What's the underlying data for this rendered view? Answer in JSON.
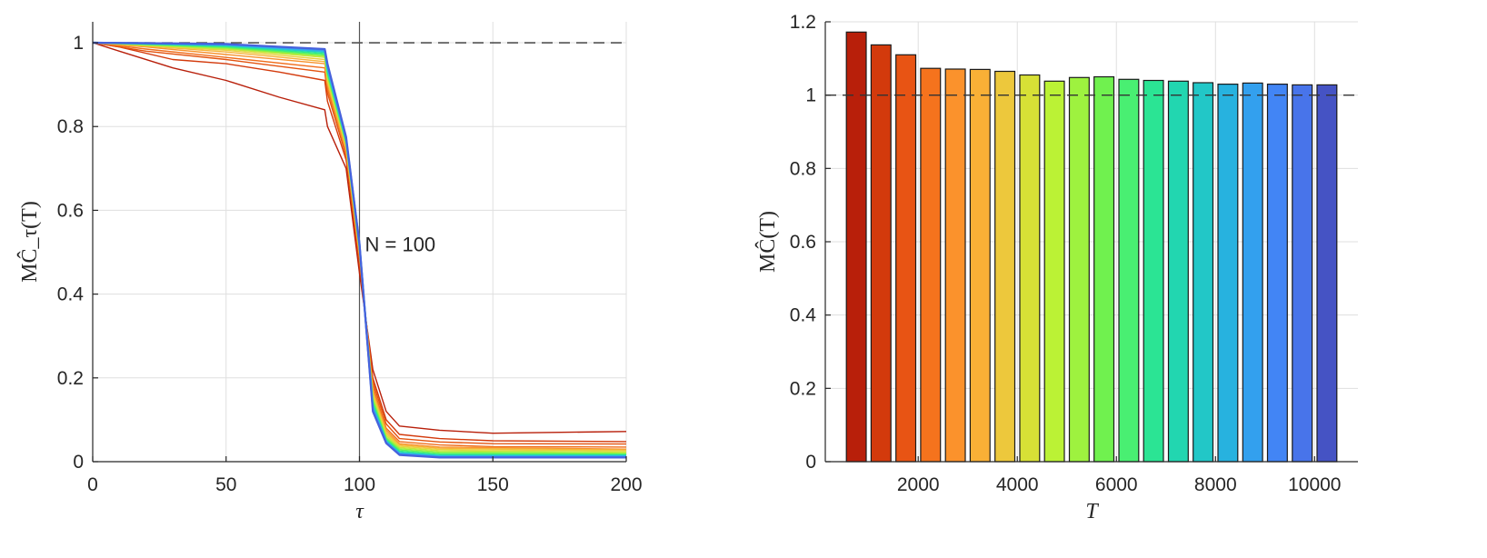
{
  "chart_data": [
    {
      "type": "line",
      "xlabel": "τ",
      "ylabel": "MĈ_τ(T)",
      "xlim": [
        0,
        200
      ],
      "ylim": [
        0,
        1.05
      ],
      "xticks": [
        "0",
        "50",
        "100",
        "150",
        "200"
      ],
      "yticks": [
        "0",
        "0.2",
        "0.4",
        "0.6",
        "0.8",
        "1"
      ],
      "grid": true,
      "reference_line_y": 1,
      "reference_line_x": 100,
      "annotation": "N = 100",
      "series": [
        {
          "color": "#b81f0a",
          "values": [
            [
              0,
              1
            ],
            [
              10,
              0.98
            ],
            [
              30,
              0.94
            ],
            [
              50,
              0.91
            ],
            [
              70,
              0.87
            ],
            [
              87,
              0.84
            ],
            [
              88,
              0.8
            ],
            [
              95,
              0.7
            ],
            [
              100,
              0.45
            ],
            [
              105,
              0.22
            ],
            [
              110,
              0.12
            ],
            [
              115,
              0.085
            ],
            [
              130,
              0.075
            ],
            [
              150,
              0.068
            ],
            [
              200,
              0.072
            ]
          ]
        },
        {
          "color": "#d33a0c",
          "values": [
            [
              0,
              1
            ],
            [
              10,
              0.99
            ],
            [
              30,
              0.96
            ],
            [
              50,
              0.95
            ],
            [
              70,
              0.93
            ],
            [
              87,
              0.91
            ],
            [
              88,
              0.86
            ],
            [
              95,
              0.72
            ],
            [
              100,
              0.47
            ],
            [
              105,
              0.2
            ],
            [
              110,
              0.1
            ],
            [
              115,
              0.065
            ],
            [
              130,
              0.055
            ],
            [
              150,
              0.05
            ],
            [
              200,
              0.048
            ]
          ]
        },
        {
          "color": "#e3530f",
          "values": [
            [
              0,
              1
            ],
            [
              20,
              0.98
            ],
            [
              50,
              0.96
            ],
            [
              87,
              0.93
            ],
            [
              88,
              0.88
            ],
            [
              95,
              0.73
            ],
            [
              100,
              0.48
            ],
            [
              105,
              0.19
            ],
            [
              110,
              0.09
            ],
            [
              115,
              0.055
            ],
            [
              130,
              0.047
            ],
            [
              150,
              0.043
            ],
            [
              200,
              0.042
            ]
          ]
        },
        {
          "color": "#f06e1d",
          "values": [
            [
              0,
              1
            ],
            [
              20,
              0.985
            ],
            [
              50,
              0.965
            ],
            [
              87,
              0.94
            ],
            [
              88,
              0.89
            ],
            [
              95,
              0.74
            ],
            [
              100,
              0.49
            ],
            [
              105,
              0.18
            ],
            [
              110,
              0.08
            ],
            [
              115,
              0.048
            ],
            [
              130,
              0.04
            ],
            [
              150,
              0.036
            ],
            [
              200,
              0.035
            ]
          ]
        },
        {
          "color": "#f7922d",
          "values": [
            [
              0,
              1
            ],
            [
              20,
              0.99
            ],
            [
              50,
              0.972
            ],
            [
              87,
              0.95
            ],
            [
              88,
              0.9
            ],
            [
              95,
              0.74
            ],
            [
              100,
              0.49
            ],
            [
              105,
              0.17
            ],
            [
              110,
              0.075
            ],
            [
              115,
              0.043
            ],
            [
              130,
              0.035
            ],
            [
              200,
              0.03
            ]
          ]
        },
        {
          "color": "#f6b23a",
          "values": [
            [
              0,
              1
            ],
            [
              20,
              0.992
            ],
            [
              50,
              0.978
            ],
            [
              87,
              0.955
            ],
            [
              88,
              0.905
            ],
            [
              95,
              0.75
            ],
            [
              100,
              0.5
            ],
            [
              105,
              0.165
            ],
            [
              110,
              0.07
            ],
            [
              115,
              0.04
            ],
            [
              130,
              0.032
            ],
            [
              200,
              0.028
            ]
          ]
        },
        {
          "color": "#eacf3e",
          "values": [
            [
              0,
              1
            ],
            [
              20,
              0.993
            ],
            [
              50,
              0.982
            ],
            [
              87,
              0.96
            ],
            [
              88,
              0.91
            ],
            [
              95,
              0.75
            ],
            [
              100,
              0.5
            ],
            [
              105,
              0.16
            ],
            [
              110,
              0.066
            ],
            [
              115,
              0.037
            ],
            [
              130,
              0.029
            ],
            [
              200,
              0.026
            ]
          ]
        },
        {
          "color": "#c9e43a",
          "values": [
            [
              0,
              1
            ],
            [
              20,
              0.994
            ],
            [
              50,
              0.985
            ],
            [
              87,
              0.965
            ],
            [
              88,
              0.915
            ],
            [
              95,
              0.755
            ],
            [
              100,
              0.505
            ],
            [
              105,
              0.155
            ],
            [
              110,
              0.062
            ],
            [
              115,
              0.034
            ],
            [
              130,
              0.026
            ],
            [
              200,
              0.023
            ]
          ]
        },
        {
          "color": "#9bf03f",
          "values": [
            [
              0,
              1
            ],
            [
              20,
              0.995
            ],
            [
              50,
              0.987
            ],
            [
              87,
              0.968
            ],
            [
              88,
              0.92
            ],
            [
              95,
              0.76
            ],
            [
              100,
              0.505
            ],
            [
              105,
              0.15
            ],
            [
              110,
              0.058
            ],
            [
              115,
              0.031
            ],
            [
              130,
              0.023
            ],
            [
              200,
              0.02
            ]
          ]
        },
        {
          "color": "#5ef35a",
          "values": [
            [
              0,
              1
            ],
            [
              20,
              0.996
            ],
            [
              50,
              0.989
            ],
            [
              87,
              0.971
            ],
            [
              88,
              0.925
            ],
            [
              95,
              0.76
            ],
            [
              100,
              0.51
            ],
            [
              105,
              0.145
            ],
            [
              110,
              0.055
            ],
            [
              115,
              0.028
            ],
            [
              130,
              0.02
            ],
            [
              200,
              0.018
            ]
          ]
        },
        {
          "color": "#2fe98a",
          "values": [
            [
              0,
              1
            ],
            [
              20,
              0.997
            ],
            [
              50,
              0.991
            ],
            [
              87,
              0.974
            ],
            [
              88,
              0.93
            ],
            [
              95,
              0.765
            ],
            [
              100,
              0.51
            ],
            [
              105,
              0.14
            ],
            [
              110,
              0.052
            ],
            [
              115,
              0.025
            ],
            [
              130,
              0.017
            ],
            [
              200,
              0.016
            ]
          ]
        },
        {
          "color": "#22d8b4",
          "values": [
            [
              0,
              1
            ],
            [
              20,
              0.997
            ],
            [
              50,
              0.993
            ],
            [
              87,
              0.977
            ],
            [
              88,
              0.935
            ],
            [
              95,
              0.765
            ],
            [
              100,
              0.515
            ],
            [
              105,
              0.135
            ],
            [
              110,
              0.05
            ],
            [
              115,
              0.022
            ],
            [
              130,
              0.015
            ],
            [
              200,
              0.015
            ]
          ]
        },
        {
          "color": "#2bbde0",
          "values": [
            [
              0,
              1
            ],
            [
              20,
              0.998
            ],
            [
              50,
              0.995
            ],
            [
              87,
              0.98
            ],
            [
              88,
              0.94
            ],
            [
              95,
              0.77
            ],
            [
              100,
              0.515
            ],
            [
              105,
              0.13
            ],
            [
              110,
              0.048
            ],
            [
              115,
              0.02
            ],
            [
              130,
              0.013
            ],
            [
              200,
              0.013
            ]
          ]
        },
        {
          "color": "#3a93f2",
          "values": [
            [
              0,
              1
            ],
            [
              20,
              0.999
            ],
            [
              50,
              0.996
            ],
            [
              87,
              0.983
            ],
            [
              88,
              0.945
            ],
            [
              95,
              0.77
            ],
            [
              100,
              0.52
            ],
            [
              105,
              0.125
            ],
            [
              110,
              0.046
            ],
            [
              115,
              0.018
            ],
            [
              130,
              0.011
            ],
            [
              200,
              0.011
            ]
          ]
        },
        {
          "color": "#4661dc",
          "values": [
            [
              0,
              1
            ],
            [
              20,
              0.999
            ],
            [
              50,
              0.997
            ],
            [
              87,
              0.985
            ],
            [
              88,
              0.95
            ],
            [
              95,
              0.775
            ],
            [
              100,
              0.52
            ],
            [
              105,
              0.12
            ],
            [
              110,
              0.044
            ],
            [
              115,
              0.016
            ],
            [
              130,
              0.01
            ],
            [
              200,
              0.01
            ]
          ]
        }
      ]
    },
    {
      "type": "bar",
      "xlabel": "T",
      "ylabel": "MĈ(T)",
      "ylim": [
        0,
        1.2
      ],
      "xlim": [
        125,
        10875
      ],
      "xticks": [
        "2000",
        "4000",
        "6000",
        "8000",
        "10000"
      ],
      "yticks": [
        "0",
        "0.2",
        "0.4",
        "0.6",
        "0.8",
        "1",
        "1.2"
      ],
      "grid": true,
      "reference_line_y": 1,
      "categories": [
        750,
        1250,
        1750,
        2250,
        2750,
        3250,
        3750,
        4250,
        4750,
        5250,
        5750,
        6250,
        6750,
        7250,
        7750,
        8250,
        8750,
        9250,
        9750,
        10250
      ],
      "values": [
        1.172,
        1.137,
        1.11,
        1.073,
        1.071,
        1.07,
        1.065,
        1.055,
        1.038,
        1.048,
        1.05,
        1.043,
        1.04,
        1.038,
        1.034,
        1.03,
        1.033,
        1.03,
        1.028,
        1.028
      ],
      "colors": [
        "#b81f0a",
        "#d33a0c",
        "#e85414",
        "#f5731d",
        "#fb922c",
        "#f9b036",
        "#edc83c",
        "#d7e036",
        "#bbf235",
        "#9ef23f",
        "#70f14f",
        "#49ef72",
        "#2be494",
        "#22d6b0",
        "#22c7c7",
        "#27b2df",
        "#33a0ee",
        "#4285f5",
        "#4874ea",
        "#4553c4"
      ]
    }
  ]
}
